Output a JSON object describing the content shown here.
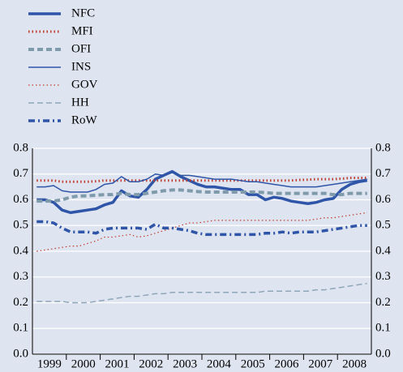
{
  "chart_data": {
    "type": "line",
    "categories": [
      "1999",
      null,
      null,
      null,
      "2000",
      null,
      null,
      null,
      "2001",
      null,
      null,
      null,
      "2002",
      null,
      null,
      null,
      "2003",
      null,
      null,
      null,
      "2004",
      null,
      null,
      null,
      "2005",
      null,
      null,
      null,
      "2006",
      null,
      null,
      null,
      "2007",
      null,
      null,
      null,
      "2008",
      null,
      null,
      null
    ],
    "ylim": [
      0,
      0.8
    ],
    "yticks": [
      {
        "value": 0,
        "label": "0.0"
      },
      0.1,
      0.2,
      0.3,
      0.4,
      0.5,
      0.6,
      0.7,
      0.8
    ],
    "grid": true,
    "legend": "top-left",
    "series": [
      {
        "name": "NFC",
        "color": "#2f55a8",
        "linestyle": "solid",
        "linewidth": 3.5,
        "values": [
          0.6,
          0.6,
          0.59,
          0.56,
          0.55,
          0.555,
          0.56,
          0.565,
          0.58,
          0.59,
          0.635,
          0.615,
          0.61,
          0.64,
          0.68,
          0.695,
          0.71,
          0.69,
          0.675,
          0.66,
          0.65,
          0.65,
          0.645,
          0.64,
          0.64,
          0.62,
          0.62,
          0.6,
          0.61,
          0.605,
          0.595,
          0.59,
          0.585,
          0.59,
          0.6,
          0.605,
          0.64,
          0.66,
          0.67,
          0.675
        ]
      },
      {
        "name": "MFI",
        "color": "#c0392b",
        "linestyle": "dotted",
        "linewidth": 3,
        "values": [
          0.675,
          0.675,
          0.675,
          0.67,
          0.67,
          0.67,
          0.67,
          0.672,
          0.675,
          0.675,
          0.675,
          0.675,
          0.675,
          0.675,
          0.675,
          0.675,
          0.675,
          0.675,
          0.675,
          0.675,
          0.675,
          0.675,
          0.675,
          0.675,
          0.675,
          0.675,
          0.675,
          0.675,
          0.675,
          0.675,
          0.675,
          0.677,
          0.678,
          0.68,
          0.68,
          0.68,
          0.682,
          0.685,
          0.685,
          0.685
        ]
      },
      {
        "name": "OFI",
        "color": "#7f9bab",
        "linestyle": "dashed",
        "linewidth": 4,
        "values": [
          0.595,
          0.595,
          0.595,
          0.6,
          0.61,
          0.615,
          0.615,
          0.618,
          0.62,
          0.62,
          0.625,
          0.62,
          0.62,
          0.625,
          0.63,
          0.635,
          0.638,
          0.638,
          0.635,
          0.632,
          0.63,
          0.63,
          0.63,
          0.63,
          0.63,
          0.63,
          0.63,
          0.628,
          0.625,
          0.625,
          0.625,
          0.625,
          0.625,
          0.625,
          0.625,
          0.62,
          0.62,
          0.625,
          0.625,
          0.625
        ]
      },
      {
        "name": "INS",
        "color": "#2f55a8",
        "linestyle": "solid",
        "linewidth": 1.5,
        "values": [
          0.65,
          0.65,
          0.655,
          0.635,
          0.63,
          0.63,
          0.63,
          0.64,
          0.66,
          0.665,
          0.69,
          0.67,
          0.67,
          0.68,
          0.7,
          0.695,
          0.705,
          0.695,
          0.695,
          0.69,
          0.685,
          0.68,
          0.68,
          0.68,
          0.675,
          0.67,
          0.67,
          0.665,
          0.66,
          0.655,
          0.65,
          0.65,
          0.65,
          0.65,
          0.655,
          0.66,
          0.665,
          0.67,
          0.675,
          0.68
        ]
      },
      {
        "name": "GOV",
        "color": "#c0392b",
        "linestyle": "dotted",
        "linewidth": 1.2,
        "values": [
          0.4,
          0.405,
          0.41,
          0.415,
          0.42,
          0.42,
          0.43,
          0.44,
          0.455,
          0.455,
          0.46,
          0.465,
          0.455,
          0.46,
          0.47,
          0.48,
          0.49,
          0.5,
          0.51,
          0.51,
          0.515,
          0.52,
          0.52,
          0.52,
          0.52,
          0.52,
          0.52,
          0.52,
          0.52,
          0.52,
          0.52,
          0.52,
          0.52,
          0.525,
          0.53,
          0.53,
          0.535,
          0.54,
          0.545,
          0.55
        ]
      },
      {
        "name": "HH",
        "color": "#8fa6b8",
        "linestyle": "dashed",
        "linewidth": 1.5,
        "values": [
          0.205,
          0.205,
          0.205,
          0.205,
          0.2,
          0.2,
          0.2,
          0.205,
          0.21,
          0.215,
          0.22,
          0.225,
          0.225,
          0.23,
          0.235,
          0.235,
          0.24,
          0.24,
          0.24,
          0.24,
          0.24,
          0.24,
          0.24,
          0.24,
          0.24,
          0.24,
          0.24,
          0.245,
          0.245,
          0.245,
          0.245,
          0.245,
          0.245,
          0.25,
          0.25,
          0.255,
          0.26,
          0.265,
          0.27,
          0.275
        ]
      },
      {
        "name": "RoW",
        "color": "#2f55a8",
        "linestyle": "dashdot",
        "linewidth": 3.5,
        "values": [
          0.515,
          0.515,
          0.51,
          0.49,
          0.475,
          0.475,
          0.475,
          0.47,
          0.485,
          0.49,
          0.49,
          0.49,
          0.49,
          0.485,
          0.505,
          0.49,
          0.49,
          0.485,
          0.48,
          0.47,
          0.465,
          0.465,
          0.465,
          0.465,
          0.465,
          0.465,
          0.465,
          0.47,
          0.47,
          0.475,
          0.47,
          0.475,
          0.475,
          0.475,
          0.48,
          0.485,
          0.49,
          0.495,
          0.5,
          0.5
        ]
      }
    ]
  }
}
